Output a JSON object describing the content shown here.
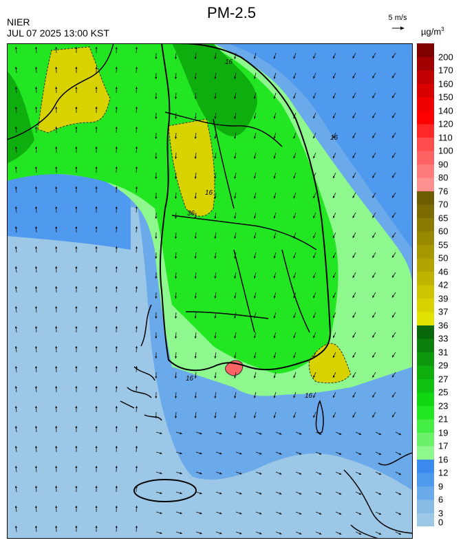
{
  "header": {
    "title": "PM-2.5",
    "agency": "NIER",
    "datetime": "JUL 07 2025 13:00 KST",
    "wind_reference": "5 m/s",
    "unit_base": "µg/m",
    "unit_exp": "3"
  },
  "legend": {
    "colors": [
      "#9cc7e6",
      "#86bbe6",
      "#6aa9ea",
      "#4f99ee",
      "#3a8af0",
      "#8ef78e",
      "#6af26a",
      "#45ee45",
      "#22e622",
      "#11d611",
      "#10c210",
      "#0fae0f",
      "#0e980e",
      "#0b800b",
      "#086708",
      "#e2e200",
      "#d7d200",
      "#ccc400",
      "#bfb400",
      "#b2a400",
      "#a69600",
      "#988800",
      "#8a7a00",
      "#7c6b00",
      "#6d5c00",
      "#ff9090",
      "#ff7a7a",
      "#ff6464",
      "#ff4c4c",
      "#ff2828",
      "#ff0000",
      "#ee0000",
      "#d80000",
      "#c00000",
      "#a00000",
      "#800000"
    ],
    "labels": [
      "0",
      "3",
      "6",
      "9",
      "12",
      "16",
      "17",
      "19",
      "21",
      "23",
      "25",
      "27",
      "29",
      "31",
      "33",
      "36",
      "37",
      "39",
      "42",
      "46",
      "50",
      "55",
      "60",
      "65",
      "70",
      "76",
      "80",
      "90",
      "100",
      "110",
      "120",
      "140",
      "150",
      "160",
      "170",
      "200"
    ]
  },
  "map": {
    "contour_labels": [
      "16",
      "16",
      "16",
      "16",
      "16",
      "36"
    ]
  }
}
